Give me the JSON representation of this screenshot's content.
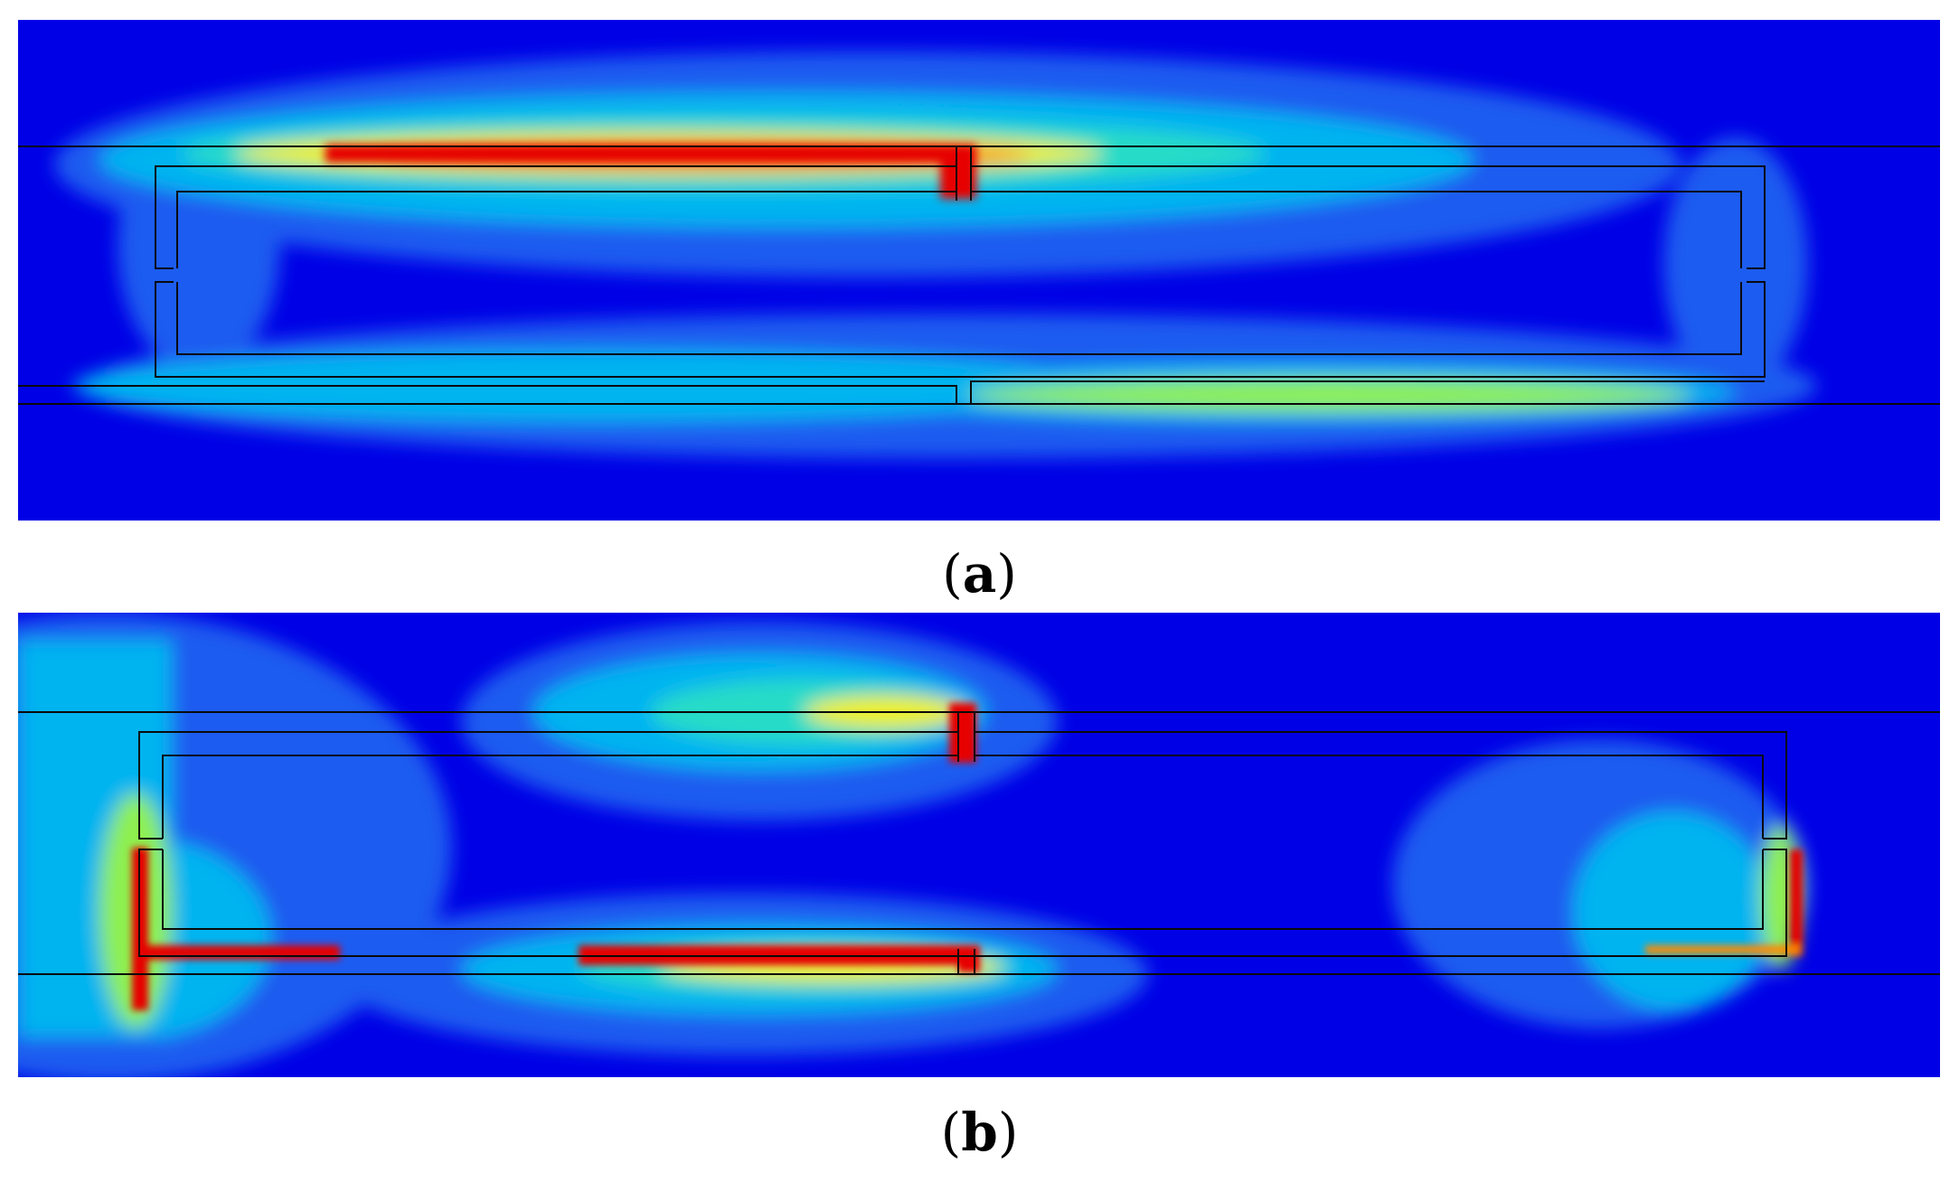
{
  "figure": {
    "panels": [
      {
        "id": "a",
        "open": "(",
        "letter": "a",
        "close": ")"
      },
      {
        "id": "b",
        "open": "(",
        "letter": "b",
        "close": ")"
      }
    ]
  },
  "colormap": {
    "background": "#0000e6",
    "low": "#1e5cf0",
    "mid_low": "#00b4f0",
    "mid": "#28dcc8",
    "mid_high": "#8ef050",
    "high_yellow": "#f0f000",
    "high_orange": "#ff8a00",
    "max": "#e60000"
  },
  "outline_color": "#0a0a0a"
}
